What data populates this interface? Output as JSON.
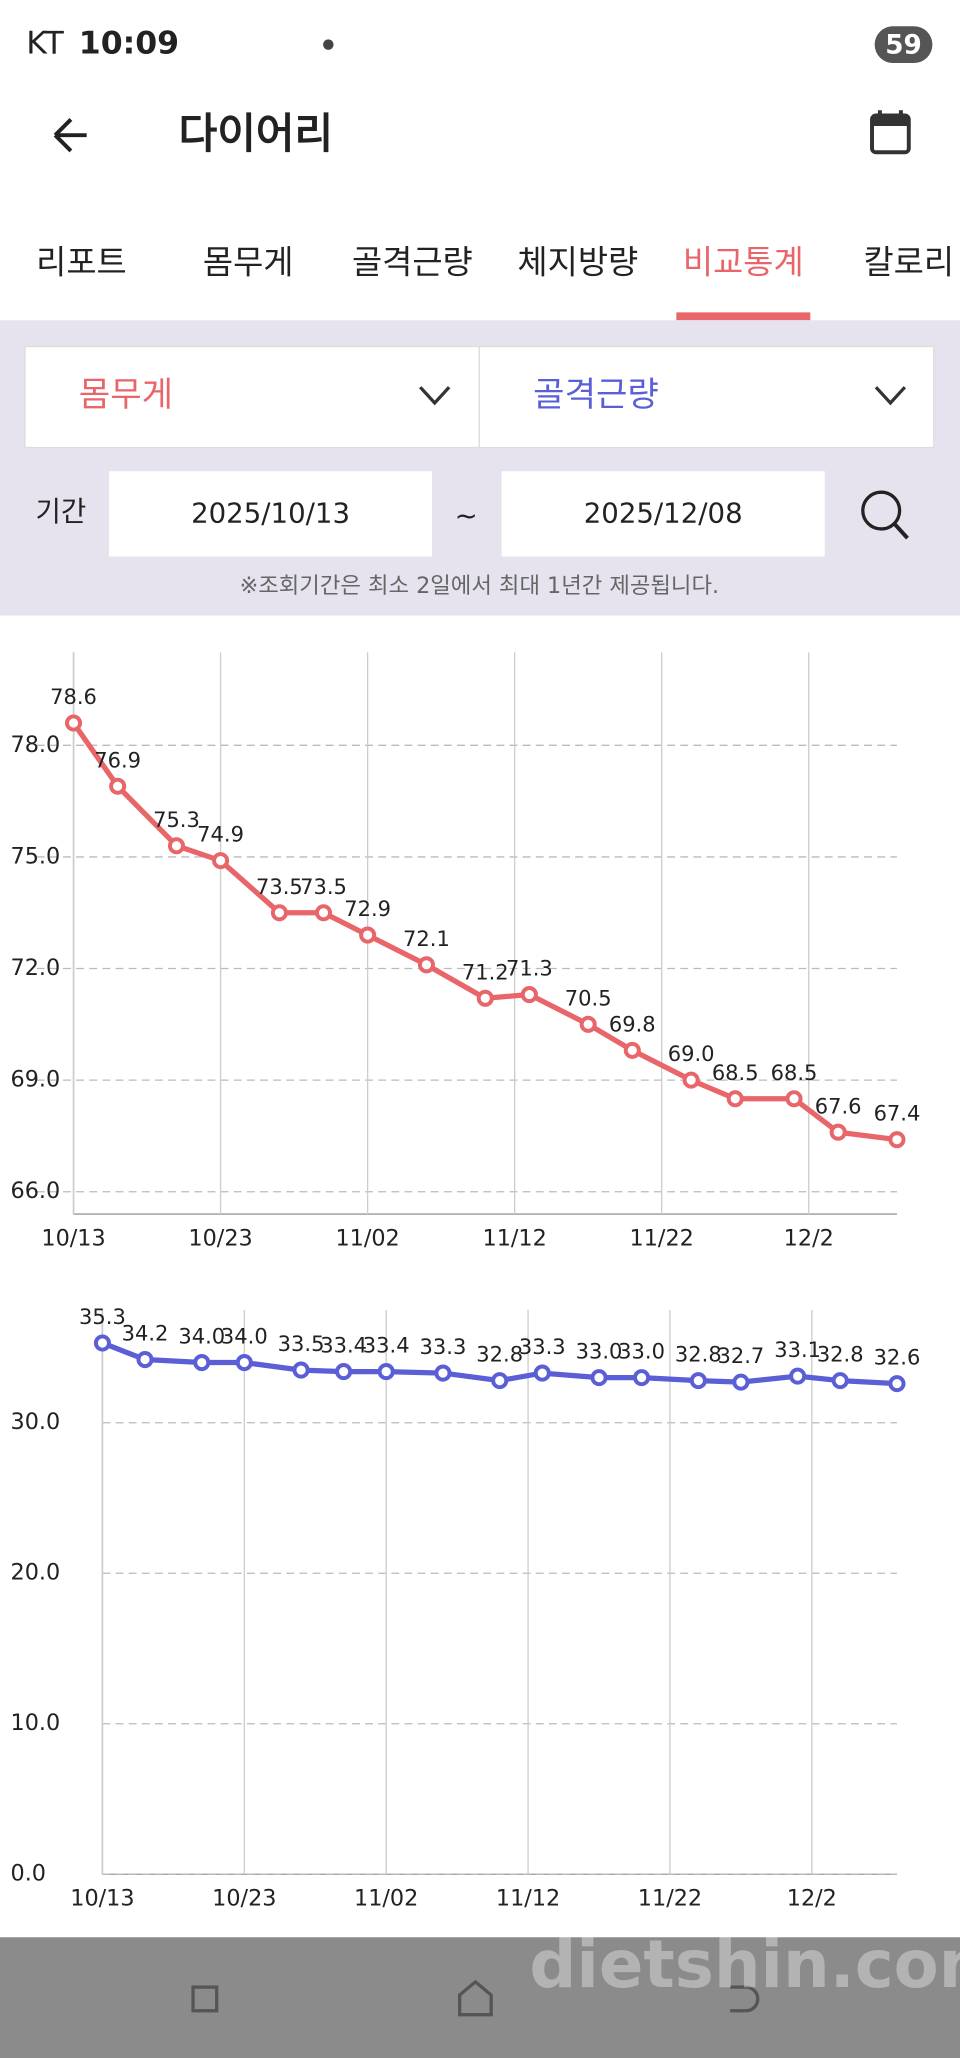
{
  "status_bar": {
    "carrier": "KT",
    "time": "10:09",
    "battery": "59"
  },
  "header": {
    "title": "다이어리"
  },
  "tabs": {
    "items": [
      "리포트",
      "몸무게",
      "골격근량",
      "체지방량",
      "비교통계",
      "칼로리"
    ],
    "active": 4
  },
  "selectors": [
    {
      "label": "몸무게",
      "color": "#e8656a"
    },
    {
      "label": "골격근량",
      "color": "#5b5fd6"
    }
  ],
  "period": {
    "label": "기간",
    "start": "2025/10/13",
    "separator": "~",
    "end": "2025/12/08"
  },
  "note": "※조회기간은 최소 2일에서 최대 1년간 제공됩니다.",
  "watermark": "dietshin.com",
  "chart_data": [
    {
      "type": "line",
      "x": [
        "10/13",
        "10/16",
        "10/20",
        "10/23",
        "10/27",
        "10/30",
        "11/02",
        "11/06",
        "11/10",
        "11/13",
        "11/17",
        "11/20",
        "11/24",
        "11/27",
        "12/01",
        "12/04",
        "12/08"
      ],
      "xlim": [
        "10/13",
        "12/08"
      ],
      "xticks": [
        "10/13",
        "10/23",
        "11/02",
        "11/12",
        "11/22",
        "12/2"
      ],
      "ylim": [
        65.4,
        80.5
      ],
      "yticks": [
        {
          "value": 66,
          "label": "66.0"
        },
        {
          "value": 69,
          "label": "69.0"
        },
        {
          "value": 72,
          "label": "72.0"
        },
        {
          "value": 75,
          "label": "75.0"
        },
        {
          "value": 78,
          "label": "78.0"
        }
      ],
      "grid": true,
      "series": [
        {
          "name": "몸무게",
          "color": "#e8656a",
          "values": [
            78.6,
            76.9,
            75.3,
            74.9,
            73.5,
            73.5,
            72.9,
            72.1,
            71.2,
            71.3,
            70.5,
            69.8,
            69.0,
            68.5,
            68.5,
            67.6,
            67.4
          ],
          "value_labels": [
            "78.6",
            "76.9",
            "75.3",
            "74.9",
            "73.5",
            "73.5",
            "72.9",
            "72.1",
            "71.2",
            "71.3",
            "70.5",
            "69.8",
            "69.0",
            "68.5",
            "68.5",
            "67.6",
            "67.4"
          ]
        }
      ]
    },
    {
      "type": "line",
      "x": [
        "10/13",
        "10/16",
        "10/20",
        "10/23",
        "10/27",
        "10/30",
        "11/02",
        "11/06",
        "11/10",
        "11/13",
        "11/17",
        "11/20",
        "11/24",
        "11/27",
        "12/01",
        "12/04",
        "12/08"
      ],
      "xlim": [
        "10/13",
        "12/08"
      ],
      "xticks": [
        "10/13",
        "10/23",
        "11/02",
        "11/12",
        "11/22",
        "12/2"
      ],
      "ylim": [
        0,
        37.5
      ],
      "yticks": [
        {
          "value": 0,
          "label": "0.0"
        },
        {
          "value": 10,
          "label": "10.0"
        },
        {
          "value": 20,
          "label": "20.0"
        },
        {
          "value": 30,
          "label": "30.0"
        }
      ],
      "grid": true,
      "series": [
        {
          "name": "골격근량",
          "color": "#5b5fd6",
          "values": [
            35.3,
            34.2,
            34.0,
            34.0,
            33.5,
            33.4,
            33.4,
            33.3,
            32.8,
            33.3,
            33.0,
            33.0,
            32.8,
            32.7,
            33.1,
            32.8,
            32.6
          ],
          "value_labels": [
            "35.3",
            "34.2",
            "34.0",
            "34.0",
            "33.5",
            "33.4",
            "33.4",
            "33.3",
            "32.8",
            "33.3",
            "33.0",
            "33.0",
            "32.8",
            "32.7",
            "33.1",
            "32.8",
            "32.6"
          ]
        }
      ]
    }
  ]
}
